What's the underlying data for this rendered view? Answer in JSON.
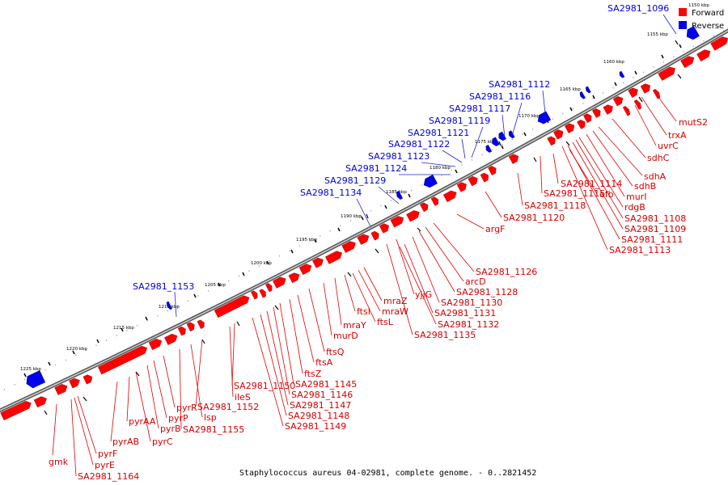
{
  "colors": {
    "forward": "#ff0000",
    "reverse": "#0000ee",
    "forward_line": "#e00000",
    "reverse_line": "#2020cc",
    "backbone": "#888888"
  },
  "legend": {
    "forward_label": "Forward",
    "reverse_label": "Reverse"
  },
  "caption": "Staphylococcus aureus 04-02981, complete genome. - 0..2821452",
  "scale": {
    "labels": [
      "1150 kbp",
      "1155 kbp",
      "1160 kbp",
      "1165 kbp",
      "1170 kbp",
      "1175 kbp",
      "1180 kbp",
      "1185 kbp",
      "1190 kbp",
      "1195 kbp",
      "1200 kbp",
      "1205 kbp",
      "1210 kbp",
      "1215 kbp",
      "1220 kbp",
      "1225 kbp"
    ]
  },
  "reverse_genes": [
    "SA2981_1096",
    "SA2981_1112",
    "SA2981_1116",
    "SA2981_1117",
    "SA2981_1119",
    "SA2981_1121",
    "SA2981_1122",
    "SA2981_1123",
    "SA2981_1124",
    "SA2981_1129",
    "SA2981_1134",
    "SA2981_1153"
  ],
  "forward_genes": [
    "mutS2",
    "trxA",
    "uvrC",
    "sdhC",
    "sdhA",
    "sdhB",
    "murI",
    "rdgB",
    "SA2981_1108",
    "SA2981_1109",
    "SA2981_1111",
    "SA2981_1113",
    "efb",
    "SA2981_1114",
    "SA2981_1115",
    "SA2981_1118",
    "SA2981_1120",
    "argF",
    "SA2981_1126",
    "arcD",
    "SA2981_1128",
    "SA2981_1130",
    "yjjG",
    "SA2981_1131",
    "SA2981_1132",
    "SA2981_1135",
    "mraZ",
    "mraW",
    "ftsL",
    "ftsI",
    "mraY",
    "murD",
    "ftsQ",
    "ftsA",
    "ftsZ",
    "SA2981_1145",
    "SA2981_1146",
    "SA2981_1147",
    "SA2981_1148",
    "SA2981_1149",
    "SA2981_1150",
    "ileS",
    "SA2981_1152",
    "lsp",
    "SA2981_1155",
    "pyrR",
    "pyrP",
    "pyrB",
    "pyrC",
    "pyrAA",
    "pyrAB",
    "pyrF",
    "pyrE",
    "gmk",
    "SA2981_1164"
  ]
}
